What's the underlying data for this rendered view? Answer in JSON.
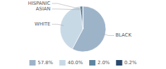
{
  "chart_data": {
    "type": "pie",
    "categories": [
      "BLACK",
      "WHITE",
      "ASIAN",
      "HISPANIC"
    ],
    "values": [
      57.8,
      40.0,
      2.0,
      0.2
    ],
    "value_labels": [
      "57.8%",
      "40.0%",
      "2.0%",
      "0.2%"
    ],
    "colors": [
      "#9db3c8",
      "#c8d9e6",
      "#5f85a0",
      "#2b4a6b"
    ],
    "legend": "bottom"
  }
}
